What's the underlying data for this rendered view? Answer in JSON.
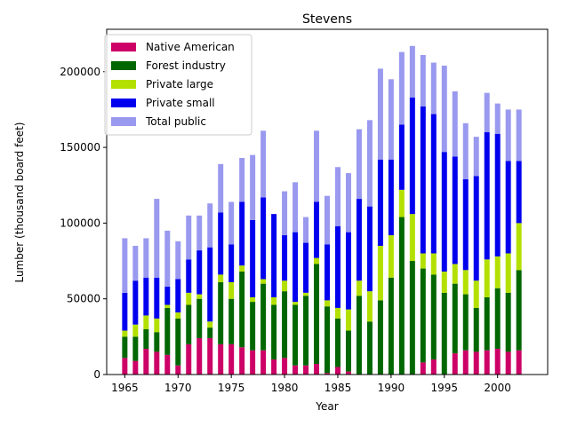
{
  "chart_data": {
    "type": "bar",
    "stacked": true,
    "title": "Stevens",
    "xlabel": "Year",
    "ylabel": "Lumber (thousand board feet)",
    "xlim": [
      1963.3,
      2004.7
    ],
    "ylim": [
      0,
      228000
    ],
    "xticks": [
      1965,
      1970,
      1975,
      1980,
      1985,
      1990,
      1995,
      2000
    ],
    "yticks": [
      0,
      50000,
      100000,
      150000,
      200000
    ],
    "legend_position": "top-left",
    "x": [
      1965,
      1966,
      1967,
      1968,
      1969,
      1970,
      1971,
      1972,
      1973,
      1974,
      1975,
      1976,
      1977,
      1978,
      1979,
      1980,
      1981,
      1982,
      1983,
      1984,
      1985,
      1986,
      1987,
      1988,
      1989,
      1990,
      1991,
      1992,
      1993,
      1994,
      1995,
      1996,
      1997,
      1998,
      1999,
      2000,
      2001,
      2002
    ],
    "series": [
      {
        "name": "Native American",
        "color": "#cc0066",
        "values": [
          11000,
          9000,
          17000,
          15000,
          13000,
          6000,
          20000,
          24000,
          24000,
          20000,
          20000,
          18000,
          16000,
          16000,
          10000,
          11000,
          6000,
          6000,
          7000,
          1000,
          5000,
          2000,
          0,
          0,
          0,
          0,
          0,
          0,
          8000,
          10000,
          0,
          14000,
          16000,
          15000,
          16000,
          17000,
          15000,
          16000
        ]
      },
      {
        "name": "Forest industry",
        "color": "#006600",
        "values": [
          14000,
          16000,
          13000,
          13000,
          31000,
          31000,
          26000,
          26000,
          7000,
          41000,
          30000,
          50000,
          32000,
          44000,
          36000,
          44000,
          40000,
          46000,
          66000,
          44000,
          32000,
          27000,
          52000,
          35000,
          49000,
          64000,
          104000,
          75000,
          62000,
          56000,
          54000,
          46000,
          37000,
          29000,
          35000,
          40000,
          39000,
          53000
        ]
      },
      {
        "name": "Private large",
        "color": "#b3e000",
        "values": [
          4000,
          8000,
          9000,
          9000,
          2000,
          4000,
          8000,
          3000,
          4000,
          5000,
          11000,
          4000,
          3000,
          3000,
          5000,
          7000,
          2000,
          2000,
          4000,
          4000,
          7000,
          14000,
          10000,
          20000,
          36000,
          28000,
          18000,
          31000,
          10000,
          14000,
          14000,
          13000,
          16000,
          18000,
          25000,
          21000,
          26000,
          31000
        ]
      },
      {
        "name": "Private small",
        "color": "#0000ee",
        "values": [
          25000,
          29000,
          25000,
          27000,
          12000,
          22000,
          22000,
          29000,
          49000,
          41000,
          25000,
          42000,
          51000,
          54000,
          55000,
          30000,
          46000,
          33000,
          37000,
          37000,
          54000,
          51000,
          54000,
          56000,
          57000,
          50000,
          43000,
          77000,
          97000,
          92000,
          79000,
          71000,
          60000,
          69000,
          84000,
          81000,
          61000,
          41000
        ]
      },
      {
        "name": "Total public",
        "color": "#9999f0",
        "values": [
          36000,
          23000,
          26000,
          52000,
          37000,
          25000,
          29000,
          23000,
          29000,
          32000,
          28000,
          29000,
          43000,
          44000,
          0,
          29000,
          33000,
          17000,
          47000,
          32000,
          39000,
          39000,
          46000,
          57000,
          60000,
          53000,
          48000,
          34000,
          34000,
          34000,
          57000,
          43000,
          37000,
          26000,
          26000,
          20000,
          34000,
          34000
        ]
      }
    ]
  }
}
